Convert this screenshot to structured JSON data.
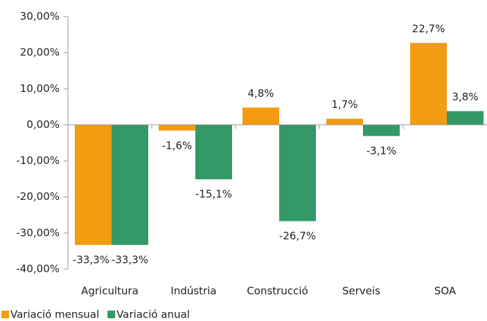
{
  "chart_data": {
    "type": "bar",
    "categories": [
      "Agricultura",
      "Indústria",
      "Construcció",
      "Serveis",
      "SOA"
    ],
    "series": [
      {
        "name": "Variació mensual",
        "color": "#f39c12",
        "values": [
          -33.3,
          -1.6,
          4.8,
          1.7,
          22.7
        ],
        "value_labels": [
          "-33,3%",
          "-1,6%",
          "4,8%",
          "1,7%",
          "22,7%"
        ]
      },
      {
        "name": "Variació anual",
        "color": "#339966",
        "values": [
          -33.3,
          -15.1,
          -26.7,
          -3.1,
          3.8
        ],
        "value_labels": [
          "-33,3%",
          "-15,1%",
          "-26,7%",
          "-3,1%",
          "3,8%"
        ]
      }
    ],
    "ylim": [
      -40,
      30
    ],
    "yticks": [
      {
        "value": -40,
        "label": "-40,00%"
      },
      {
        "value": -30,
        "label": "-30,00%"
      },
      {
        "value": -20,
        "label": "-20,00%"
      },
      {
        "value": -10,
        "label": "-10,00%"
      },
      {
        "value": 0,
        "label": "0,00%"
      },
      {
        "value": 10,
        "label": "10,00%"
      },
      {
        "value": 20,
        "label": "20,00%"
      },
      {
        "value": 30,
        "label": "30,00%"
      }
    ],
    "legend": "bottom-left"
  }
}
